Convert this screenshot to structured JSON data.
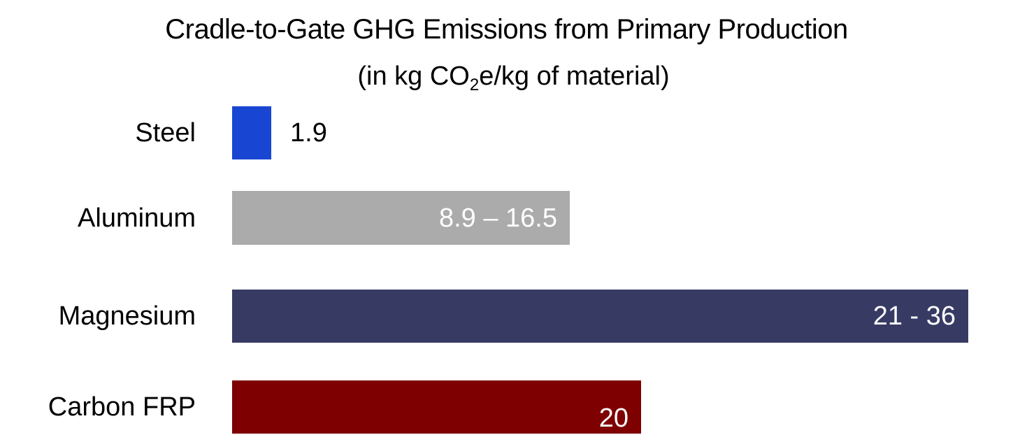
{
  "chart_data": {
    "type": "bar",
    "orientation": "horizontal",
    "title": "Cradle-to-Gate GHG Emissions from Primary Production",
    "subtitle": {
      "before_sub": "(in kg CO",
      "subscript": "2",
      "after_sub": "e/kg of material)"
    },
    "categories": [
      "Steel",
      "Aluminum",
      "Magnesium",
      "Carbon FRP"
    ],
    "values": [
      1.9,
      16.5,
      36,
      20
    ],
    "ranges": [
      null,
      [
        8.9,
        16.5
      ],
      [
        21,
        36
      ],
      null
    ],
    "data_labels": [
      "1.9",
      "8.9 – 16.5",
      "21 - 36",
      "20"
    ],
    "colors": [
      "#1846D2",
      "#ABABAB",
      "#373A63",
      "#7E0000"
    ],
    "xlim": [
      0,
      36
    ],
    "grid": false,
    "legend": "none"
  }
}
